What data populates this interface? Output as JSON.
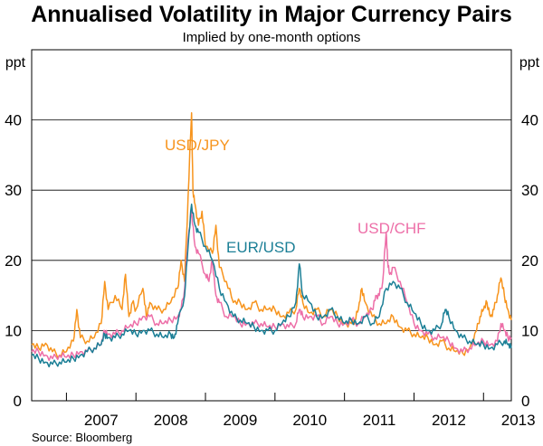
{
  "chart_data": {
    "type": "line",
    "title": "Annualised Volatility in Major Currency Pairs",
    "subtitle": "Implied by one-month options",
    "ylabel_left": "ppt",
    "ylabel_right": "ppt",
    "ylim": [
      0,
      50
    ],
    "yticks": [
      0,
      10,
      20,
      30,
      40
    ],
    "year_labels": [
      "2007",
      "2008",
      "2009",
      "2010",
      "2011",
      "2012",
      "2013"
    ],
    "xlim": [
      2006.5,
      2013.4
    ],
    "source": "Source: Bloomberg",
    "series": [
      {
        "name": "USD/JPY",
        "color": "#f7941d",
        "points": [
          [
            2006.5,
            8
          ],
          [
            2006.6,
            7.5
          ],
          [
            2006.7,
            8.2
          ],
          [
            2006.8,
            7
          ],
          [
            2006.9,
            6.5
          ],
          [
            2007.0,
            7
          ],
          [
            2007.1,
            8.5
          ],
          [
            2007.15,
            13
          ],
          [
            2007.2,
            9
          ],
          [
            2007.3,
            8.5
          ],
          [
            2007.4,
            9
          ],
          [
            2007.5,
            11
          ],
          [
            2007.55,
            17
          ],
          [
            2007.6,
            13
          ],
          [
            2007.7,
            15
          ],
          [
            2007.8,
            13
          ],
          [
            2007.85,
            18
          ],
          [
            2007.9,
            12
          ],
          [
            2007.95,
            14
          ],
          [
            2008.0,
            13
          ],
          [
            2008.1,
            16
          ],
          [
            2008.15,
            12
          ],
          [
            2008.2,
            14
          ],
          [
            2008.3,
            13
          ],
          [
            2008.4,
            13
          ],
          [
            2008.5,
            14
          ],
          [
            2008.6,
            16
          ],
          [
            2008.65,
            20
          ],
          [
            2008.7,
            17
          ],
          [
            2008.75,
            29
          ],
          [
            2008.8,
            41
          ],
          [
            2008.82,
            30
          ],
          [
            2008.85,
            28
          ],
          [
            2008.9,
            25
          ],
          [
            2008.95,
            27
          ],
          [
            2009.0,
            22
          ],
          [
            2009.1,
            21
          ],
          [
            2009.15,
            25
          ],
          [
            2009.2,
            19
          ],
          [
            2009.3,
            17
          ],
          [
            2009.4,
            14
          ],
          [
            2009.5,
            14
          ],
          [
            2009.6,
            13
          ],
          [
            2009.7,
            14
          ],
          [
            2009.8,
            13
          ],
          [
            2009.9,
            13
          ],
          [
            2010.0,
            13
          ],
          [
            2010.1,
            12
          ],
          [
            2010.2,
            12.5
          ],
          [
            2010.3,
            13
          ],
          [
            2010.35,
            16
          ],
          [
            2010.4,
            14
          ],
          [
            2010.5,
            12.5
          ],
          [
            2010.6,
            13
          ],
          [
            2010.7,
            12
          ],
          [
            2010.8,
            13
          ],
          [
            2010.9,
            12
          ],
          [
            2011.0,
            11
          ],
          [
            2011.1,
            11
          ],
          [
            2011.15,
            11.5
          ],
          [
            2011.2,
            13
          ],
          [
            2011.25,
            16
          ],
          [
            2011.3,
            14
          ],
          [
            2011.4,
            12
          ],
          [
            2011.5,
            11
          ],
          [
            2011.6,
            11
          ],
          [
            2011.7,
            12
          ],
          [
            2011.8,
            10.5
          ],
          [
            2011.9,
            10
          ],
          [
            2012.0,
            9.5
          ],
          [
            2012.1,
            9
          ],
          [
            2012.2,
            9
          ],
          [
            2012.3,
            8
          ],
          [
            2012.4,
            8.5
          ],
          [
            2012.5,
            7.5
          ],
          [
            2012.6,
            7
          ],
          [
            2012.7,
            6.8
          ],
          [
            2012.8,
            7.5
          ],
          [
            2012.9,
            10
          ],
          [
            2012.95,
            12
          ],
          [
            2013.0,
            13
          ],
          [
            2013.05,
            14
          ],
          [
            2013.1,
            12
          ],
          [
            2013.15,
            13
          ],
          [
            2013.2,
            15
          ],
          [
            2013.25,
            17.5
          ],
          [
            2013.3,
            15
          ],
          [
            2013.35,
            13
          ],
          [
            2013.4,
            11.5
          ]
        ]
      },
      {
        "name": "USD/CHF",
        "color": "#ed6fa8",
        "points": [
          [
            2006.5,
            7
          ],
          [
            2006.6,
            7
          ],
          [
            2006.7,
            6.5
          ],
          [
            2006.8,
            6
          ],
          [
            2006.9,
            6.5
          ],
          [
            2007.0,
            6.2
          ],
          [
            2007.1,
            6.5
          ],
          [
            2007.2,
            7
          ],
          [
            2007.3,
            7
          ],
          [
            2007.4,
            7.5
          ],
          [
            2007.5,
            8
          ],
          [
            2007.55,
            10
          ],
          [
            2007.6,
            9.5
          ],
          [
            2007.7,
            9.5
          ],
          [
            2007.8,
            10
          ],
          [
            2007.9,
            10.5
          ],
          [
            2008.0,
            11
          ],
          [
            2008.1,
            12
          ],
          [
            2008.2,
            12
          ],
          [
            2008.3,
            11
          ],
          [
            2008.4,
            11
          ],
          [
            2008.5,
            11.5
          ],
          [
            2008.6,
            12
          ],
          [
            2008.65,
            13
          ],
          [
            2008.7,
            16
          ],
          [
            2008.75,
            23
          ],
          [
            2008.8,
            27
          ],
          [
            2008.85,
            22
          ],
          [
            2008.9,
            21
          ],
          [
            2009.0,
            18
          ],
          [
            2009.05,
            17
          ],
          [
            2009.1,
            20
          ],
          [
            2009.15,
            15
          ],
          [
            2009.2,
            14
          ],
          [
            2009.3,
            12
          ],
          [
            2009.4,
            12
          ],
          [
            2009.5,
            11
          ],
          [
            2009.6,
            11
          ],
          [
            2009.7,
            11
          ],
          [
            2009.8,
            11
          ],
          [
            2009.9,
            10.5
          ],
          [
            2010.0,
            10.5
          ],
          [
            2010.1,
            11
          ],
          [
            2010.2,
            10.5
          ],
          [
            2010.3,
            11
          ],
          [
            2010.35,
            13
          ],
          [
            2010.4,
            12
          ],
          [
            2010.5,
            12
          ],
          [
            2010.6,
            12
          ],
          [
            2010.7,
            11
          ],
          [
            2010.8,
            12
          ],
          [
            2010.9,
            11
          ],
          [
            2011.0,
            11
          ],
          [
            2011.1,
            11.5
          ],
          [
            2011.2,
            11
          ],
          [
            2011.3,
            12
          ],
          [
            2011.4,
            13
          ],
          [
            2011.45,
            15
          ],
          [
            2011.5,
            15
          ],
          [
            2011.55,
            17
          ],
          [
            2011.6,
            24
          ],
          [
            2011.62,
            20
          ],
          [
            2011.65,
            18
          ],
          [
            2011.7,
            19
          ],
          [
            2011.8,
            17
          ],
          [
            2011.9,
            14
          ],
          [
            2012.0,
            11
          ],
          [
            2012.1,
            10
          ],
          [
            2012.2,
            9.5
          ],
          [
            2012.3,
            9
          ],
          [
            2012.4,
            9
          ],
          [
            2012.5,
            8.5
          ],
          [
            2012.6,
            7.5
          ],
          [
            2012.7,
            7
          ],
          [
            2012.8,
            7.5
          ],
          [
            2012.9,
            8
          ],
          [
            2013.0,
            8.5
          ],
          [
            2013.1,
            8
          ],
          [
            2013.2,
            8.5
          ],
          [
            2013.25,
            11
          ],
          [
            2013.3,
            10
          ],
          [
            2013.35,
            9
          ],
          [
            2013.4,
            9
          ]
        ]
      },
      {
        "name": "EUR/USD",
        "color": "#1b7f96",
        "points": [
          [
            2006.5,
            6.5
          ],
          [
            2006.6,
            6
          ],
          [
            2006.7,
            5.5
          ],
          [
            2006.8,
            5.2
          ],
          [
            2006.9,
            5.5
          ],
          [
            2007.0,
            5.5
          ],
          [
            2007.1,
            6
          ],
          [
            2007.2,
            6.5
          ],
          [
            2007.3,
            7
          ],
          [
            2007.4,
            7.5
          ],
          [
            2007.5,
            8
          ],
          [
            2007.55,
            9.5
          ],
          [
            2007.6,
            9
          ],
          [
            2007.7,
            9
          ],
          [
            2007.8,
            9.5
          ],
          [
            2007.9,
            10
          ],
          [
            2008.0,
            9.5
          ],
          [
            2008.1,
            10
          ],
          [
            2008.2,
            10
          ],
          [
            2008.3,
            9.5
          ],
          [
            2008.4,
            9
          ],
          [
            2008.5,
            9.5
          ],
          [
            2008.55,
            9
          ],
          [
            2008.6,
            11
          ],
          [
            2008.7,
            15
          ],
          [
            2008.75,
            22
          ],
          [
            2008.8,
            28
          ],
          [
            2008.85,
            25
          ],
          [
            2008.9,
            24
          ],
          [
            2009.0,
            22
          ],
          [
            2009.1,
            20
          ],
          [
            2009.2,
            16
          ],
          [
            2009.3,
            14
          ],
          [
            2009.4,
            12
          ],
          [
            2009.5,
            11.5
          ],
          [
            2009.6,
            11
          ],
          [
            2009.7,
            10.5
          ],
          [
            2009.8,
            10
          ],
          [
            2009.9,
            10
          ],
          [
            2010.0,
            10
          ],
          [
            2010.1,
            11
          ],
          [
            2010.2,
            12
          ],
          [
            2010.3,
            14
          ],
          [
            2010.35,
            19.5
          ],
          [
            2010.4,
            15
          ],
          [
            2010.5,
            14
          ],
          [
            2010.6,
            12
          ],
          [
            2010.7,
            12
          ],
          [
            2010.8,
            13
          ],
          [
            2010.9,
            12
          ],
          [
            2011.0,
            11
          ],
          [
            2011.1,
            11.5
          ],
          [
            2011.2,
            11
          ],
          [
            2011.3,
            12
          ],
          [
            2011.4,
            11
          ],
          [
            2011.5,
            12
          ],
          [
            2011.6,
            16
          ],
          [
            2011.7,
            17
          ],
          [
            2011.8,
            16
          ],
          [
            2011.9,
            14
          ],
          [
            2012.0,
            12.5
          ],
          [
            2012.1,
            11
          ],
          [
            2012.2,
            10
          ],
          [
            2012.3,
            10
          ],
          [
            2012.4,
            11
          ],
          [
            2012.45,
            13
          ],
          [
            2012.5,
            12
          ],
          [
            2012.6,
            10
          ],
          [
            2012.7,
            9
          ],
          [
            2012.8,
            8.5
          ],
          [
            2012.9,
            8
          ],
          [
            2013.0,
            8
          ],
          [
            2013.1,
            7.5
          ],
          [
            2013.2,
            8
          ],
          [
            2013.3,
            8.5
          ],
          [
            2013.35,
            8
          ],
          [
            2013.4,
            7.5
          ]
        ]
      }
    ]
  }
}
